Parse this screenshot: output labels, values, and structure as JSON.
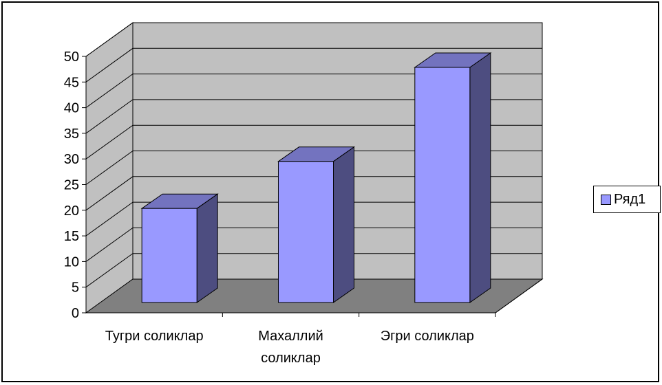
{
  "chart_data": {
    "type": "bar",
    "title": "",
    "xlabel": "",
    "ylabel": "",
    "categories": [
      "Тугри соликлар",
      "Махаллий соликлар",
      "Эгри соликлар"
    ],
    "series": [
      {
        "name": "Ряд1",
        "values": [
          20,
          30,
          50
        ]
      }
    ],
    "ylim": [
      0,
      50
    ],
    "yticks": [
      0,
      5,
      10,
      15,
      20,
      25,
      30,
      35,
      40,
      45,
      50
    ],
    "grid": true,
    "legend_position": "right",
    "colors": {
      "bar_front": "#9999ff",
      "bar_side": "#4d4d80",
      "bar_top": "#7373bf",
      "wall": "#c0c0c0",
      "floor": "#808080"
    }
  }
}
